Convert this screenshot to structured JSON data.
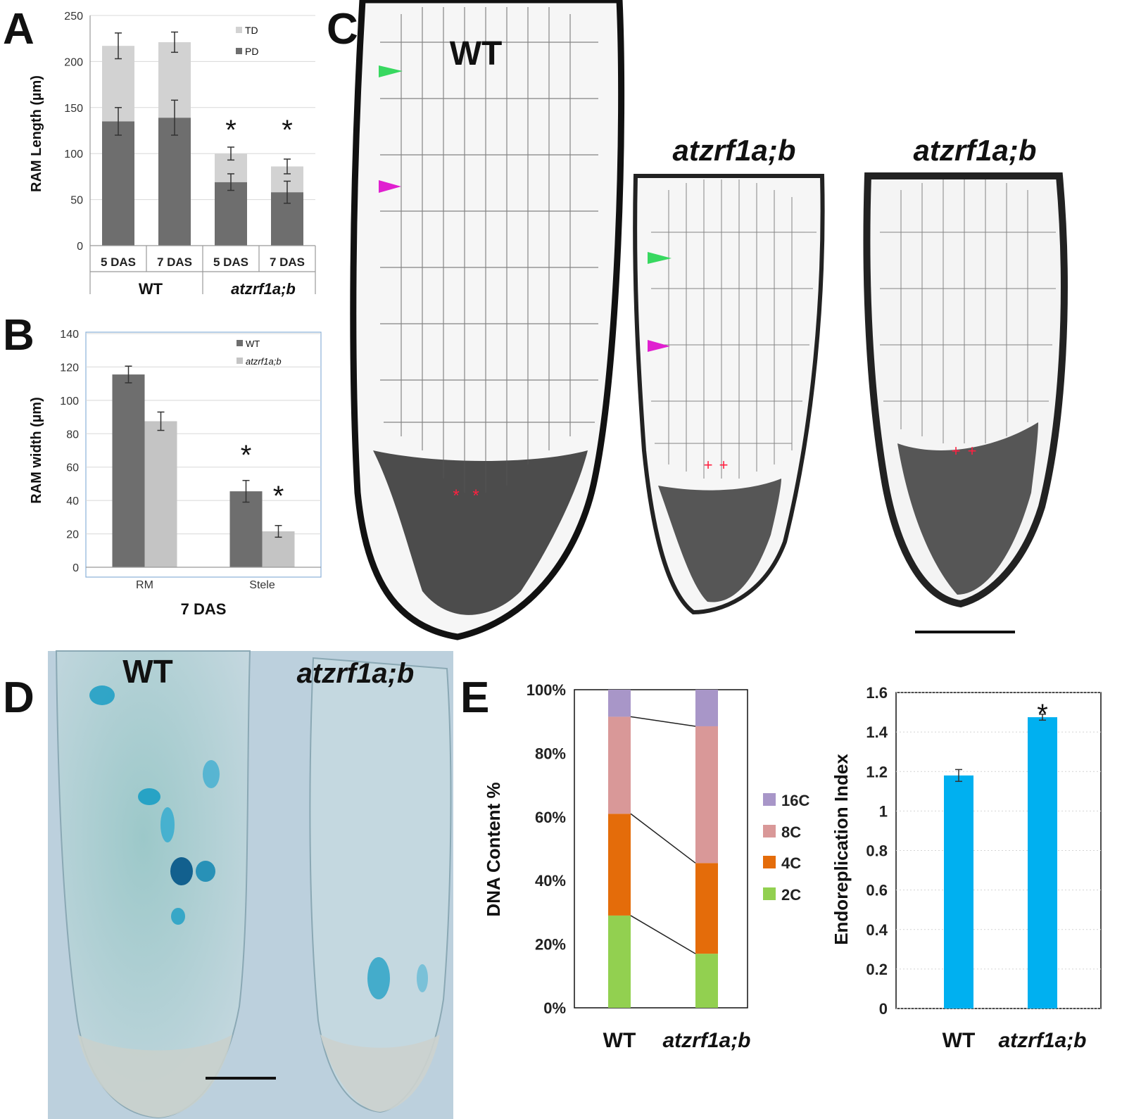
{
  "panel_letters": [
    "A",
    "B",
    "C",
    "D",
    "E"
  ],
  "colors": {
    "dark_gray": "#6e6e6e",
    "light_gray": "#d2d2d2",
    "orchid": "#d9dcdb",
    "c16": "#a896c8",
    "c8": "#d99898",
    "c4": "#e46c0a",
    "c2": "#92d050",
    "cyan": "#00b0f0",
    "green_arrow": "#38d860",
    "magenta_arrow": "#e020d0",
    "red_mark": "#ff2040",
    "gus_bg": "#b9cedc",
    "gus_blue": "#1a9ec4"
  },
  "panel_c": {
    "labels": [
      "WT",
      "atzrf1a;b",
      "atzrf1a;b"
    ],
    "star_marks": [
      "*",
      "*"
    ],
    "plus_marks": [
      "+",
      "+",
      "+",
      "+"
    ]
  },
  "panel_d": {
    "labels": [
      "WT",
      "atzrf1a;b"
    ]
  },
  "chart_data": [
    {
      "id": "A",
      "type": "bar",
      "stacked": true,
      "categories": [
        "5 DAS",
        "7 DAS",
        "5 DAS",
        "7 DAS"
      ],
      "groups": [
        "WT",
        "atzrf1a;b"
      ],
      "series": [
        {
          "name": "PD",
          "values": [
            135,
            139,
            69,
            58
          ],
          "errors": [
            15,
            19,
            9,
            12
          ]
        },
        {
          "name": "TD",
          "values": [
            82,
            82,
            31,
            28
          ],
          "errors": [
            14,
            11,
            7,
            8
          ]
        }
      ],
      "annotations": [
        "*",
        "*"
      ],
      "ylabel": "RAM Length (µm)",
      "ylim": [
        0,
        250
      ],
      "yticks": [
        0,
        50,
        100,
        150,
        200,
        250
      ],
      "grid": true,
      "legend": "top-right"
    },
    {
      "id": "B",
      "type": "bar",
      "categories": [
        "RM",
        "Stele"
      ],
      "series": [
        {
          "name": "WT",
          "values": [
            115.5,
            45.5
          ],
          "errors": [
            5,
            6.5
          ]
        },
        {
          "name": "atzrf1a;b",
          "values": [
            87.5,
            21.5
          ],
          "errors": [
            5.5,
            3.5
          ]
        }
      ],
      "annotations": [
        "*",
        "*"
      ],
      "xlabel": "7 DAS",
      "ylabel": "RAM width (µm)",
      "ylim": [
        0,
        140
      ],
      "yticks": [
        0,
        20,
        40,
        60,
        80,
        100,
        120,
        140
      ],
      "grid": true,
      "legend": "top-right"
    },
    {
      "id": "E-left",
      "type": "bar",
      "stacked": true,
      "categories": [
        "WT",
        "atzrf1a;b"
      ],
      "series": [
        {
          "name": "2C",
          "values": [
            29,
            17
          ]
        },
        {
          "name": "4C",
          "values": [
            32,
            28.5
          ]
        },
        {
          "name": "8C",
          "values": [
            30.5,
            43
          ]
        },
        {
          "name": "16C",
          "values": [
            8.5,
            11.5
          ]
        }
      ],
      "ylabel": "DNA Content %",
      "ylim": [
        0,
        100
      ],
      "yticks": [
        "0%",
        "20%",
        "40%",
        "60%",
        "80%",
        "100%"
      ],
      "legend": "right"
    },
    {
      "id": "E-right",
      "type": "bar",
      "categories": [
        "WT",
        "atzrf1a;b"
      ],
      "values": [
        1.18,
        1.475
      ],
      "errors": [
        0.03,
        0.015
      ],
      "annotations": [
        "*"
      ],
      "ylabel": "Endoreplication Index",
      "ylim": [
        0,
        1.6
      ],
      "yticks": [
        "0",
        "0.2",
        "0.4",
        "0.6",
        "0.8",
        "1",
        "1.2",
        "1.4",
        "1.6"
      ],
      "grid": true
    }
  ]
}
